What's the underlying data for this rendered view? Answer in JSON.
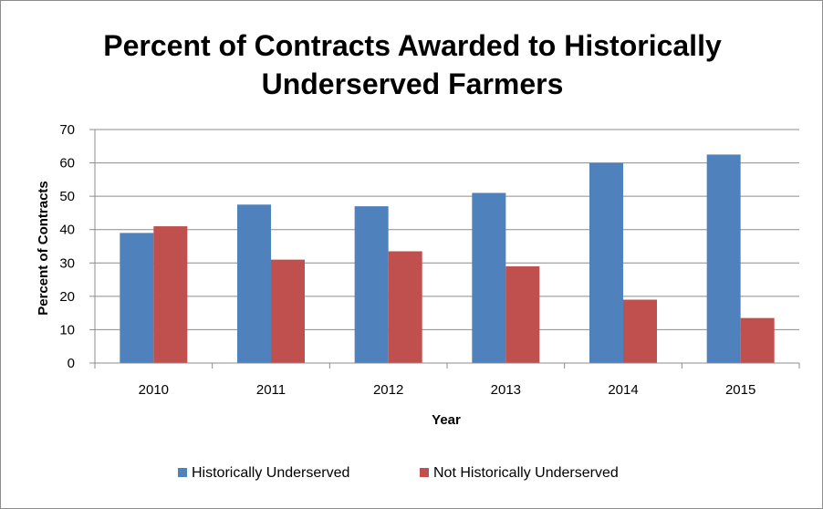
{
  "chart_data": {
    "type": "bar",
    "title_line1": "Percent of Contracts Awarded to Historically",
    "title_line2": "Underserved Farmers",
    "xlabel": "Year",
    "ylabel": "Percent of Contracts",
    "ylim": [
      0,
      70
    ],
    "yticks": [
      0,
      10,
      20,
      30,
      40,
      50,
      60,
      70
    ],
    "grid": true,
    "legend": "bottom",
    "categories": [
      "2010",
      "2011",
      "2012",
      "2013",
      "2014",
      "2015"
    ],
    "series": [
      {
        "name": "Historically Underserved",
        "color": "#4f81bd",
        "values": [
          39,
          47.5,
          47,
          51,
          60,
          62.5
        ]
      },
      {
        "name": "Not Historically Underserved",
        "color": "#c0504d",
        "values": [
          41,
          31,
          33.5,
          29,
          19,
          13.5
        ]
      }
    ]
  }
}
